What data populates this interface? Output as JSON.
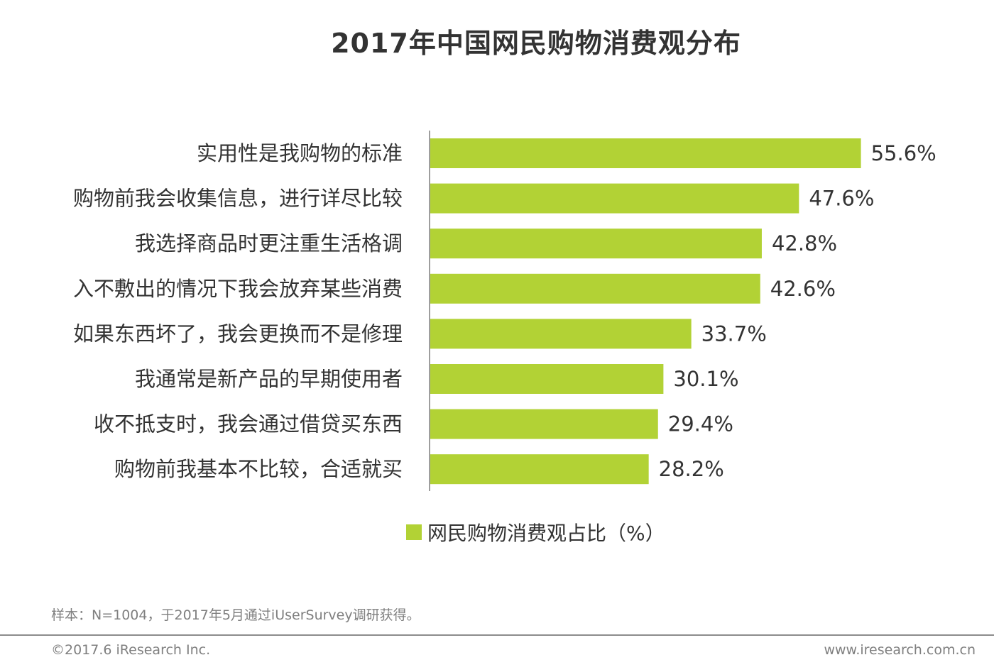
{
  "chart_data": {
    "type": "bar",
    "orientation": "horizontal",
    "title": "2017年中国网民购物消费观分布",
    "categories": [
      "实用性是我购物的标准",
      "购物前我会收集信息，进行详尽比较",
      "我选择商品时更注重生活格调",
      "入不敷出的情况下我会放弃某些消费",
      "如果东西坏了，我会更换而不是修理",
      "我通常是新产品的早期使用者",
      "收不抵支时，我会通过借贷买东西",
      "购物前我基本不比较，合适就买"
    ],
    "values": [
      55.6,
      47.6,
      42.8,
      42.6,
      33.7,
      30.1,
      29.4,
      28.2
    ],
    "value_labels": [
      "55.6%",
      "47.6%",
      "42.8%",
      "42.6%",
      "33.7%",
      "30.1%",
      "29.4%",
      "28.2%"
    ],
    "series": [
      {
        "name": "网民购物消费观占比（%）",
        "values": [
          55.6,
          47.6,
          42.8,
          42.6,
          33.7,
          30.1,
          29.4,
          28.2
        ]
      }
    ],
    "xlim": [
      0,
      60
    ],
    "legend": "bottom",
    "grid": false
  },
  "colors": {
    "bar": "#b2d235",
    "axis": "#7f7f7f",
    "text": "#333333",
    "muted": "#7f7f7f"
  },
  "legend": {
    "label": "网民购物消费观占比（%）"
  },
  "note": "样本：N=1004，于2017年5月通过iUserSurvey调研获得。",
  "footer": {
    "copyright": "©2017.6 iResearch Inc.",
    "website": "www.iresearch.com.cn"
  }
}
